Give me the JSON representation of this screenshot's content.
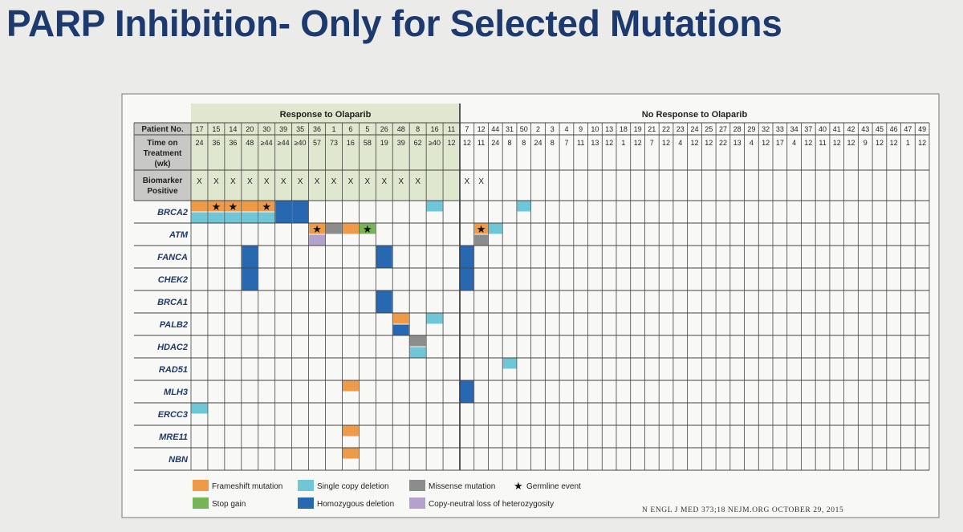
{
  "slide": {
    "title": "PARP Inhibition- Only for Selected Mutations"
  },
  "figure": {
    "group_headers": {
      "responders": "Response to Olaparib",
      "nonresponders": "No Response to Olaparib"
    },
    "row_labels": {
      "patient_no": "Patient No.",
      "time_on_treatment": "Time on Treatment (wk)",
      "biomarker_positive": "Biomarker Positive"
    },
    "responders": {
      "patients": [
        "17",
        "15",
        "14",
        "20",
        "30",
        "39",
        "35",
        "36",
        "1",
        "6",
        "5",
        "26",
        "48",
        "8",
        "16",
        "11"
      ],
      "weeks": [
        "24",
        "36",
        "36",
        "48",
        "≥44",
        "≥44",
        "≥40",
        "57",
        "73",
        "16",
        "58",
        "19",
        "39",
        "62",
        "≥40",
        "12"
      ],
      "biomarker": [
        "X",
        "X",
        "X",
        "X",
        "X",
        "X",
        "X",
        "X",
        "X",
        "X",
        "X",
        "X",
        "X",
        "X",
        "",
        ""
      ]
    },
    "nonresponders": {
      "patients": [
        "7",
        "12",
        "44",
        "31",
        "50",
        "2",
        "3",
        "4",
        "9",
        "10",
        "13",
        "18",
        "19",
        "21",
        "22",
        "23",
        "24",
        "25",
        "27",
        "28",
        "29",
        "32",
        "33",
        "34",
        "37",
        "40",
        "41",
        "42",
        "43",
        "45",
        "46",
        "47",
        "49"
      ],
      "weeks": [
        "12",
        "11",
        "24",
        "8",
        "8",
        "24",
        "8",
        "7",
        "11",
        "13",
        "12",
        "1",
        "12",
        "7",
        "12",
        "4",
        "12",
        "12",
        "22",
        "13",
        "4",
        "12",
        "17",
        "4",
        "12",
        "11",
        "12",
        "12",
        "9",
        "12",
        "12",
        "1",
        "12"
      ],
      "biomarker": [
        "X",
        "X",
        "",
        "",
        "",
        "",
        "",
        "",
        "",
        "",
        "",
        "",
        "",
        "",
        "",
        "",
        "",
        "",
        "",
        "",
        "",
        "",
        "",
        "",
        "",
        "",
        "",
        "",
        "",
        "",
        "",
        "",
        ""
      ]
    },
    "genes": [
      "BRCA2",
      "ATM",
      "FANCA",
      "CHEK2",
      "BRCA1",
      "PALB2",
      "HDAC2",
      "RAD51",
      "MLH3",
      "ERCC3",
      "MRE11",
      "NBN"
    ],
    "events": [
      {
        "gene": "BRCA2",
        "patient": "17",
        "type": "frameshift",
        "half": "top",
        "germline": false
      },
      {
        "gene": "BRCA2",
        "patient": "15",
        "type": "frameshift",
        "half": "top",
        "germline": true
      },
      {
        "gene": "BRCA2",
        "patient": "14",
        "type": "frameshift",
        "half": "top",
        "germline": true
      },
      {
        "gene": "BRCA2",
        "patient": "20",
        "type": "frameshift",
        "half": "top",
        "germline": false
      },
      {
        "gene": "BRCA2",
        "patient": "30",
        "type": "frameshift",
        "half": "top",
        "germline": true
      },
      {
        "gene": "BRCA2",
        "patient": "17",
        "type": "single_copy_deletion",
        "half": "bottom",
        "germline": false
      },
      {
        "gene": "BRCA2",
        "patient": "15",
        "type": "single_copy_deletion",
        "half": "bottom",
        "germline": false
      },
      {
        "gene": "BRCA2",
        "patient": "14",
        "type": "single_copy_deletion",
        "half": "bottom",
        "germline": false
      },
      {
        "gene": "BRCA2",
        "patient": "20",
        "type": "single_copy_deletion",
        "half": "bottom",
        "germline": false
      },
      {
        "gene": "BRCA2",
        "patient": "30",
        "type": "single_copy_deletion",
        "half": "bottom",
        "germline": false
      },
      {
        "gene": "BRCA2",
        "patient": "39",
        "type": "homozygous_deletion",
        "half": "full",
        "germline": false
      },
      {
        "gene": "BRCA2",
        "patient": "35",
        "type": "homozygous_deletion",
        "half": "full",
        "germline": false
      },
      {
        "gene": "BRCA2",
        "patient": "16",
        "type": "single_copy_deletion",
        "half": "top",
        "germline": false
      },
      {
        "gene": "BRCA2",
        "patient": "50",
        "type": "single_copy_deletion",
        "half": "top",
        "germline": false
      },
      {
        "gene": "ATM",
        "patient": "36",
        "type": "frameshift",
        "half": "top",
        "germline": true
      },
      {
        "gene": "ATM",
        "patient": "36",
        "type": "copy_neutral_loh",
        "half": "bottom",
        "germline": false
      },
      {
        "gene": "ATM",
        "patient": "1",
        "type": "missense",
        "half": "top",
        "germline": false
      },
      {
        "gene": "ATM",
        "patient": "6",
        "type": "frameshift",
        "half": "top",
        "germline": false
      },
      {
        "gene": "ATM",
        "patient": "5",
        "type": "stop_gain",
        "half": "top",
        "germline": true
      },
      {
        "gene": "ATM",
        "patient": "12",
        "type": "frameshift",
        "half": "top",
        "germline": true
      },
      {
        "gene": "ATM",
        "patient": "12",
        "type": "missense",
        "half": "bottom",
        "germline": false
      },
      {
        "gene": "ATM",
        "patient": "44",
        "type": "single_copy_deletion",
        "half": "top",
        "germline": false
      },
      {
        "gene": "FANCA",
        "patient": "20",
        "type": "homozygous_deletion",
        "half": "full",
        "germline": false
      },
      {
        "gene": "FANCA",
        "patient": "26",
        "type": "homozygous_deletion",
        "half": "full",
        "germline": false
      },
      {
        "gene": "FANCA",
        "patient": "7",
        "type": "homozygous_deletion",
        "half": "full",
        "germline": false
      },
      {
        "gene": "CHEK2",
        "patient": "20",
        "type": "homozygous_deletion",
        "half": "full",
        "germline": false
      },
      {
        "gene": "CHEK2",
        "patient": "7",
        "type": "homozygous_deletion",
        "half": "full",
        "germline": false
      },
      {
        "gene": "BRCA1",
        "patient": "26",
        "type": "homozygous_deletion",
        "half": "full",
        "germline": false
      },
      {
        "gene": "PALB2",
        "patient": "48",
        "type": "frameshift",
        "half": "top",
        "germline": false
      },
      {
        "gene": "PALB2",
        "patient": "48",
        "type": "homozygous_deletion",
        "half": "bottom",
        "germline": false
      },
      {
        "gene": "PALB2",
        "patient": "16",
        "type": "single_copy_deletion",
        "half": "top",
        "germline": false
      },
      {
        "gene": "HDAC2",
        "patient": "8",
        "type": "missense",
        "half": "top",
        "germline": false
      },
      {
        "gene": "HDAC2",
        "patient": "8",
        "type": "single_copy_deletion",
        "half": "bottom",
        "germline": false
      },
      {
        "gene": "RAD51",
        "patient": "31",
        "type": "single_copy_deletion",
        "half": "top",
        "germline": false
      },
      {
        "gene": "MLH3",
        "patient": "6",
        "type": "frameshift",
        "half": "top",
        "germline": false
      },
      {
        "gene": "MLH3",
        "patient": "7",
        "type": "homozygous_deletion",
        "half": "full",
        "germline": false
      },
      {
        "gene": "ERCC3",
        "patient": "17",
        "type": "single_copy_deletion",
        "half": "top",
        "germline": false
      },
      {
        "gene": "MRE11",
        "patient": "6",
        "type": "frameshift",
        "half": "top",
        "germline": false
      },
      {
        "gene": "NBN",
        "patient": "6",
        "type": "frameshift",
        "half": "top",
        "germline": false
      }
    ],
    "legend": [
      {
        "key": "frameshift",
        "label": "Frameshift mutation",
        "color": "#ee9a49"
      },
      {
        "key": "single_copy_deletion",
        "label": "Single copy deletion",
        "color": "#6fc6d6"
      },
      {
        "key": "missense",
        "label": "Missense mutation",
        "color": "#8c8c8c"
      },
      {
        "key": "germline",
        "label": "Germline event",
        "symbol": "★"
      },
      {
        "key": "stop_gain",
        "label": "Stop gain",
        "color": "#76b457"
      },
      {
        "key": "homozygous_deletion",
        "label": "Homozygous deletion",
        "color": "#2768b1"
      },
      {
        "key": "copy_neutral_loh",
        "label": "Copy-neutral loss of heterozygosity",
        "color": "#b4a2cc"
      }
    ],
    "citation": "N ENGL J MED 373;18     NEJM.ORG     OCTOBER 29, 2015",
    "colors": {
      "response_band": "#dfe7cf",
      "label_band": "#c8c8c6",
      "grid": "#444444",
      "gene_label": "#1d3a6e"
    }
  }
}
